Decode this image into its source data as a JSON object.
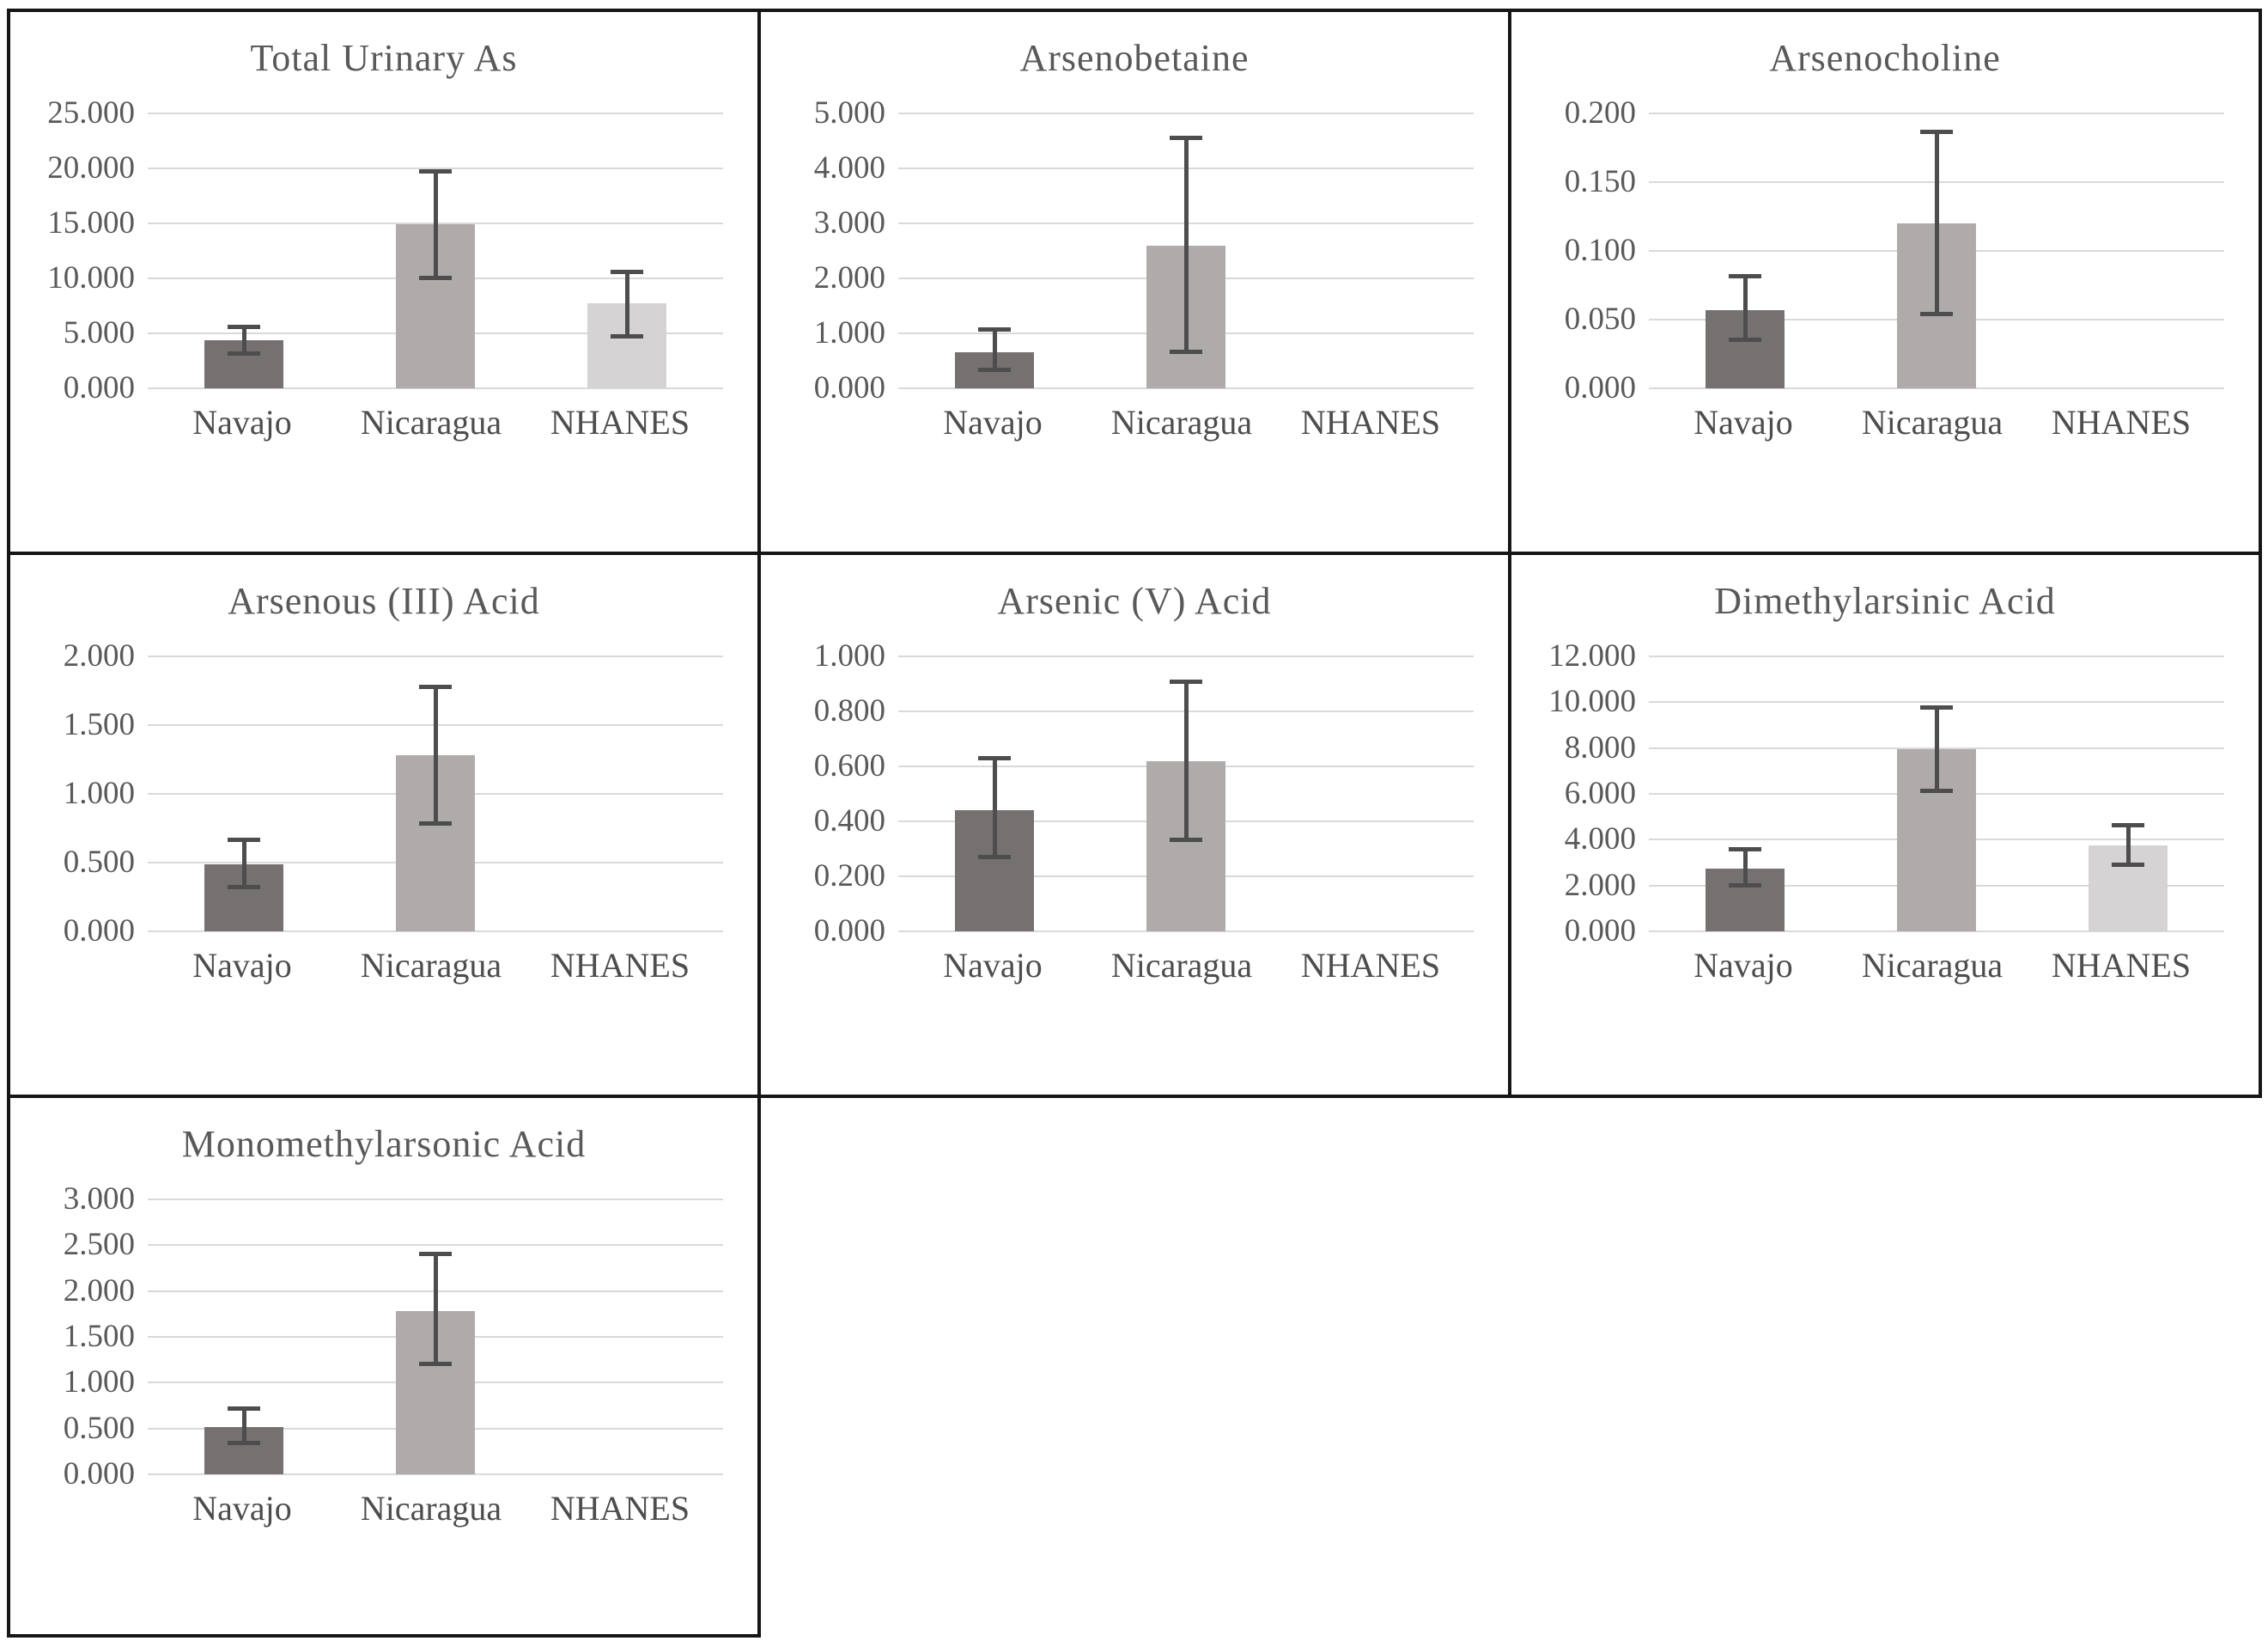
{
  "page": {
    "background": "#ffffff"
  },
  "colors": {
    "border": "#161616",
    "gridline": "#d9d9d9",
    "title_text": "#595959",
    "tick_text": "#595959",
    "category_text": "#4d4d4d",
    "error_bar": "#4d4d4d",
    "bars": [
      "#767171",
      "#afabab",
      "#d5d3d3"
    ]
  },
  "categories": [
    "Navajo",
    "Nicaragua",
    "NHANES"
  ],
  "chart_data": [
    {
      "type": "bar",
      "title": "Total Urinary As",
      "categories": [
        "Navajo",
        "Nicaragua",
        "NHANES"
      ],
      "values": [
        4.4,
        14.9,
        7.7
      ],
      "error_low": [
        3.1,
        10.0,
        4.7
      ],
      "error_high": [
        5.6,
        19.8,
        10.6
      ],
      "ylim": [
        0,
        25
      ],
      "ytick_labels": [
        "0.000",
        "5.000",
        "10.000",
        "15.000",
        "20.000",
        "25.000"
      ],
      "grid": true,
      "legend": "none"
    },
    {
      "type": "bar",
      "title": "Arsenobetaine",
      "categories": [
        "Navajo",
        "Nicaragua",
        "NHANES"
      ],
      "values": [
        0.66,
        2.6,
        null
      ],
      "error_low": [
        0.33,
        0.66,
        null
      ],
      "error_high": [
        1.08,
        4.56,
        null
      ],
      "ylim": [
        0,
        5
      ],
      "ytick_labels": [
        "0.000",
        "1.000",
        "2.000",
        "3.000",
        "4.000",
        "5.000"
      ],
      "grid": true,
      "legend": "none"
    },
    {
      "type": "bar",
      "title": "Arsenocholine",
      "categories": [
        "Navajo",
        "Nicaragua",
        "NHANES"
      ],
      "values": [
        0.057,
        0.12,
        null
      ],
      "error_low": [
        0.035,
        0.054,
        null
      ],
      "error_high": [
        0.082,
        0.187,
        null
      ],
      "ylim": [
        0,
        0.2
      ],
      "ytick_labels": [
        "0.000",
        "0.050",
        "0.100",
        "0.150",
        "0.200"
      ],
      "grid": true,
      "legend": "none"
    },
    {
      "type": "bar",
      "title": "Arsenous (III) Acid",
      "categories": [
        "Navajo",
        "Nicaragua",
        "NHANES"
      ],
      "values": [
        0.49,
        1.28,
        null
      ],
      "error_low": [
        0.32,
        0.78,
        null
      ],
      "error_high": [
        0.67,
        1.78,
        null
      ],
      "ylim": [
        0,
        2
      ],
      "ytick_labels": [
        "0.000",
        "0.500",
        "1.000",
        "1.500",
        "2.000"
      ],
      "grid": true,
      "legend": "none"
    },
    {
      "type": "bar",
      "title": "Arsenic (V) Acid",
      "categories": [
        "Navajo",
        "Nicaragua",
        "NHANES"
      ],
      "values": [
        0.44,
        0.62,
        null
      ],
      "error_low": [
        0.27,
        0.33,
        null
      ],
      "error_high": [
        0.63,
        0.91,
        null
      ],
      "ylim": [
        0,
        1
      ],
      "ytick_labels": [
        "0.000",
        "0.200",
        "0.400",
        "0.600",
        "0.800",
        "1.000"
      ],
      "grid": true,
      "legend": "none"
    },
    {
      "type": "bar",
      "title": "Dimethylarsinic Acid",
      "categories": [
        "Navajo",
        "Nicaragua",
        "NHANES"
      ],
      "values": [
        2.75,
        7.95,
        3.75
      ],
      "error_low": [
        2.0,
        6.1,
        2.9
      ],
      "error_high": [
        3.6,
        9.8,
        4.65
      ],
      "ylim": [
        0,
        12
      ],
      "ytick_labels": [
        "0.000",
        "2.000",
        "4.000",
        "6.000",
        "8.000",
        "10.000",
        "12.000"
      ],
      "grid": true,
      "legend": "none"
    },
    {
      "type": "bar",
      "title": "Monomethylarsonic Acid",
      "categories": [
        "Navajo",
        "Nicaragua",
        "NHANES"
      ],
      "values": [
        0.52,
        1.78,
        null
      ],
      "error_low": [
        0.34,
        1.2,
        null
      ],
      "error_high": [
        0.72,
        2.41,
        null
      ],
      "ylim": [
        0,
        3
      ],
      "ytick_labels": [
        "0.000",
        "0.500",
        "1.000",
        "1.500",
        "2.000",
        "2.500",
        "3.000"
      ],
      "grid": true,
      "legend": "none"
    }
  ]
}
